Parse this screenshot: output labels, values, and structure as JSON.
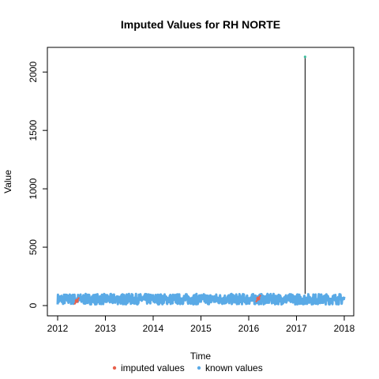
{
  "chart_data": {
    "type": "line",
    "title": "Imputed Values for  RH NORTE",
    "xlabel": "Time",
    "ylabel": "Value",
    "xlim": [
      2012,
      2018
    ],
    "ylim": [
      0,
      2130
    ],
    "x_ticks": [
      2012,
      2013,
      2014,
      2015,
      2016,
      2017,
      2018
    ],
    "y_ticks": [
      0,
      500,
      1000,
      1500,
      2000
    ],
    "grid": false,
    "legend_position": "bottom",
    "series": [
      {
        "name": "known values",
        "color": "#5aaae6",
        "band_min": 10,
        "band_max": 100,
        "x": [
          2012.0,
          2012.5,
          2013.0,
          2013.5,
          2014.0,
          2014.5,
          2015.0,
          2015.5,
          2016.0,
          2016.5,
          2017.0,
          2017.5,
          2018.0
        ],
        "y": [
          55,
          50,
          55,
          60,
          55,
          55,
          60,
          55,
          45,
          55,
          55,
          50,
          60
        ]
      },
      {
        "name": "imputed values",
        "color": "#e8604c",
        "x": [
          2012.4,
          2016.2
        ],
        "y": [
          40,
          60
        ]
      }
    ],
    "annotations": [
      {
        "type": "spike",
        "x": 2017.18,
        "y": 2130,
        "color": "#000000",
        "marker_color": "#40c0a0"
      }
    ]
  }
}
